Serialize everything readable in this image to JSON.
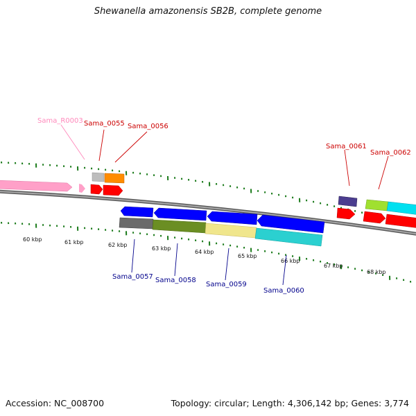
{
  "title": "Shewanella amazonensis SB2B, complete genome",
  "footer": {
    "accession": "Accession: NC_008700",
    "summary": "Topology: circular; Length: 4,306,142 bp; Genes: 3,774"
  },
  "colors": {
    "backbone": "#808080",
    "tick": "#1a7a1a",
    "forward_label": "#cc0000",
    "reverse_label": "#00008b",
    "rna_label": "#ff88bb"
  },
  "scale": {
    "labels": [
      "60 kbp",
      "61 kbp",
      "62 kbp",
      "63 kbp",
      "64 kbp",
      "65 kbp",
      "66 kbp",
      "67 kbp",
      "68 kbp"
    ]
  },
  "gene_labels": [
    {
      "text": "Sama_R0003",
      "strand": "rna"
    },
    {
      "text": "Sama_0055",
      "strand": "forward"
    },
    {
      "text": "Sama_0056",
      "strand": "forward"
    },
    {
      "text": "Sama_0061",
      "strand": "forward"
    },
    {
      "text": "Sama_0062",
      "strand": "forward"
    },
    {
      "text": "Sama_0057",
      "strand": "reverse"
    },
    {
      "text": "Sama_0058",
      "strand": "reverse"
    },
    {
      "text": "Sama_0059",
      "strand": "reverse"
    },
    {
      "text": "Sama_0060",
      "strand": "reverse"
    }
  ]
}
